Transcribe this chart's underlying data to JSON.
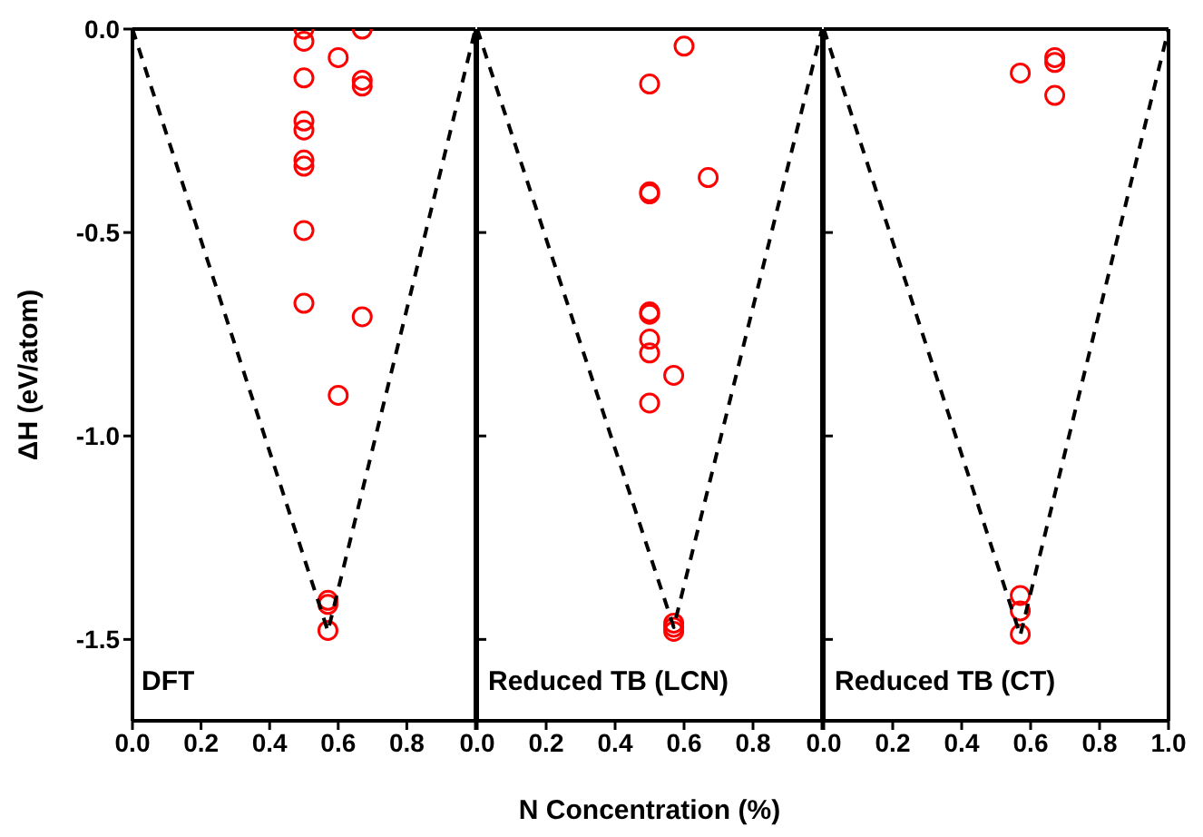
{
  "chart_data": [
    {
      "type": "scatter",
      "ylabel": "ΔH (eV/atom)",
      "annotations": [
        "DFT"
      ],
      "xlim": [
        0,
        1
      ],
      "ylim": [
        -1.7,
        0
      ],
      "xticks": [
        {
          "value": 0,
          "label": "0.0"
        },
        {
          "value": 0.2,
          "label": "0.2"
        },
        {
          "value": 0.4,
          "label": "0.4"
        },
        {
          "value": 0.6,
          "label": "0.6"
        },
        {
          "value": 0.8,
          "label": "0.8"
        },
        {
          "value": 1,
          "label": null
        }
      ],
      "yticks": [
        {
          "value": 0,
          "label": "0.0"
        },
        {
          "value": -0.5,
          "label": "-0.5"
        },
        {
          "value": -1,
          "label": "-1.0"
        },
        {
          "value": -1.5,
          "label": "-1.5"
        }
      ],
      "grid": false,
      "legend": false,
      "series": [
        {
          "type": "scatter",
          "color": "#ff0000",
          "marker": "circle",
          "x": [
            0.5,
            0.67,
            0.5,
            0.6,
            0.5,
            0.67,
            0.67,
            0.5,
            0.5,
            0.5,
            0.5,
            0.5,
            0.5,
            0.67,
            0.6,
            0.57,
            0.57,
            0.57
          ],
          "values": [
            0,
            0,
            -0.03,
            -0.07,
            -0.12,
            -0.126,
            -0.14,
            -0.226,
            -0.248,
            -0.322,
            -0.337,
            -0.495,
            -0.674,
            -0.707,
            -0.9,
            -1.404,
            -1.414,
            -1.478
          ]
        },
        {
          "type": "line",
          "color": "#000000",
          "marker": "none",
          "line_style": "dashed",
          "x": [
            0,
            0.57,
            1
          ],
          "values": [
            0,
            -1.48,
            0
          ]
        }
      ]
    },
    {
      "type": "scatter",
      "xlabel": "N Concentration (%)",
      "annotations": [
        "Reduced TB (LCN)"
      ],
      "xlim": [
        0,
        1
      ],
      "ylim": [
        -1.7,
        0
      ],
      "tick_labels": "x",
      "xticks": [
        {
          "value": 0,
          "label": "0.0"
        },
        {
          "value": 0.2,
          "label": "0.2"
        },
        {
          "value": 0.4,
          "label": "0.4"
        },
        {
          "value": 0.6,
          "label": "0.6"
        },
        {
          "value": 0.8,
          "label": "0.8"
        },
        {
          "value": 1,
          "label": null
        }
      ],
      "yticks": [
        0,
        -0.5,
        -1,
        -1.5
      ],
      "grid": false,
      "legend": false,
      "series": [
        {
          "type": "scatter",
          "color": "#ff0000",
          "marker": "circle",
          "x": [
            0.6,
            0.5,
            0.67,
            0.5,
            0.5,
            0.5,
            0.5,
            0.5,
            0.5,
            0.57,
            0.5,
            0.57,
            0.57,
            0.57
          ],
          "values": [
            -0.042,
            -0.135,
            -0.365,
            -0.4,
            -0.405,
            -0.695,
            -0.701,
            -0.762,
            -0.796,
            -0.851,
            -0.919,
            -1.46,
            -1.47,
            -1.48
          ]
        },
        {
          "type": "line",
          "color": "#000000",
          "marker": "none",
          "line_style": "dashed",
          "x": [
            0,
            0.57,
            1
          ],
          "values": [
            0,
            -1.47,
            0
          ]
        }
      ]
    },
    {
      "type": "scatter",
      "annotations": [
        "Reduced TB (CT)"
      ],
      "xlim": [
        0,
        1
      ],
      "ylim": [
        -1.7,
        0
      ],
      "tick_labels": "x",
      "xticks": [
        {
          "value": 0,
          "label": "0.0"
        },
        {
          "value": 0.2,
          "label": "0.2"
        },
        {
          "value": 0.4,
          "label": "0.4"
        },
        {
          "value": 0.6,
          "label": "0.6"
        },
        {
          "value": 0.8,
          "label": "0.8"
        },
        {
          "value": 1,
          "label": "1.0"
        }
      ],
      "yticks": [
        0,
        -0.5,
        -1,
        -1.5
      ],
      "grid": false,
      "legend": false,
      "series": [
        {
          "type": "scatter",
          "color": "#ff0000",
          "marker": "circle",
          "x": [
            0.57,
            0.67,
            0.67,
            0.67,
            0.57,
            0.57,
            0.57
          ],
          "values": [
            -0.108,
            -0.07,
            -0.082,
            -0.163,
            -1.392,
            -1.43,
            -1.487
          ]
        },
        {
          "type": "line",
          "color": "#000000",
          "marker": "none",
          "line_style": "dashed",
          "x": [
            0,
            0.57,
            1
          ],
          "values": [
            0,
            -1.49,
            0
          ]
        }
      ]
    }
  ]
}
